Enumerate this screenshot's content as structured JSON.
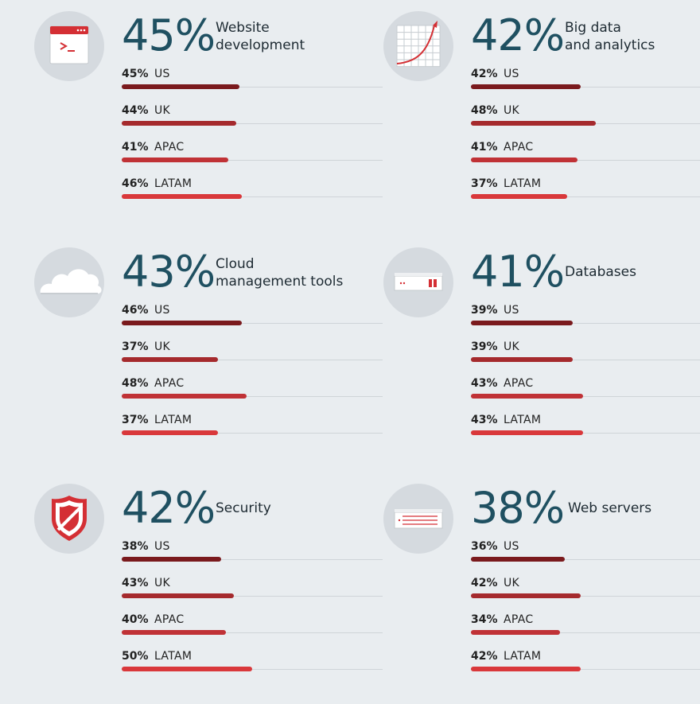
{
  "colors": {
    "us": "#7a1a1d",
    "uk": "#a52a2d",
    "apac": "#c03236",
    "latam": "#d9383b",
    "accent": "#d42f34",
    "headline": "#1f5061"
  },
  "chart_data": {
    "type": "bar",
    "orientation": "horizontal",
    "value_max": 100,
    "panels": [
      {
        "icon": "terminal-window-icon",
        "total": "45%",
        "label_lines": [
          "Website",
          "development"
        ],
        "rows": [
          {
            "region": "US",
            "value": 45,
            "label": "45%"
          },
          {
            "region": "UK",
            "value": 44,
            "label": "44%"
          },
          {
            "region": "APAC",
            "value": 41,
            "label": "41%"
          },
          {
            "region": "LATAM",
            "value": 46,
            "label": "46%"
          }
        ]
      },
      {
        "icon": "growth-chart-icon",
        "total": "42%",
        "label_lines": [
          "Big data",
          "and analytics"
        ],
        "rows": [
          {
            "region": "US",
            "value": 42,
            "label": "42%"
          },
          {
            "region": "UK",
            "value": 48,
            "label": "48%"
          },
          {
            "region": "APAC",
            "value": 41,
            "label": "41%"
          },
          {
            "region": "LATAM",
            "value": 37,
            "label": "37%"
          }
        ]
      },
      {
        "icon": "cloud-icon",
        "total": "43%",
        "label_lines": [
          "Cloud",
          "management tools"
        ],
        "rows": [
          {
            "region": "US",
            "value": 46,
            "label": "46%"
          },
          {
            "region": "UK",
            "value": 37,
            "label": "37%"
          },
          {
            "region": "APAC",
            "value": 48,
            "label": "48%"
          },
          {
            "region": "LATAM",
            "value": 37,
            "label": "37%"
          }
        ]
      },
      {
        "icon": "database-server-icon",
        "total": "41%",
        "label_lines": [
          "Databases"
        ],
        "rows": [
          {
            "region": "US",
            "value": 39,
            "label": "39%"
          },
          {
            "region": "UK",
            "value": 39,
            "label": "39%"
          },
          {
            "region": "APAC",
            "value": 43,
            "label": "43%"
          },
          {
            "region": "LATAM",
            "value": 43,
            "label": "43%"
          }
        ]
      },
      {
        "icon": "shield-icon",
        "total": "42%",
        "label_lines": [
          "Security"
        ],
        "rows": [
          {
            "region": "US",
            "value": 38,
            "label": "38%"
          },
          {
            "region": "UK",
            "value": 43,
            "label": "43%"
          },
          {
            "region": "APAC",
            "value": 40,
            "label": "40%"
          },
          {
            "region": "LATAM",
            "value": 50,
            "label": "50%"
          }
        ]
      },
      {
        "icon": "web-server-icon",
        "total": "38%",
        "label_lines": [
          "Web servers"
        ],
        "rows": [
          {
            "region": "US",
            "value": 36,
            "label": "36%"
          },
          {
            "region": "UK",
            "value": 42,
            "label": "42%"
          },
          {
            "region": "APAC",
            "value": 34,
            "label": "34%"
          },
          {
            "region": "LATAM",
            "value": 42,
            "label": "42%"
          }
        ]
      }
    ]
  }
}
